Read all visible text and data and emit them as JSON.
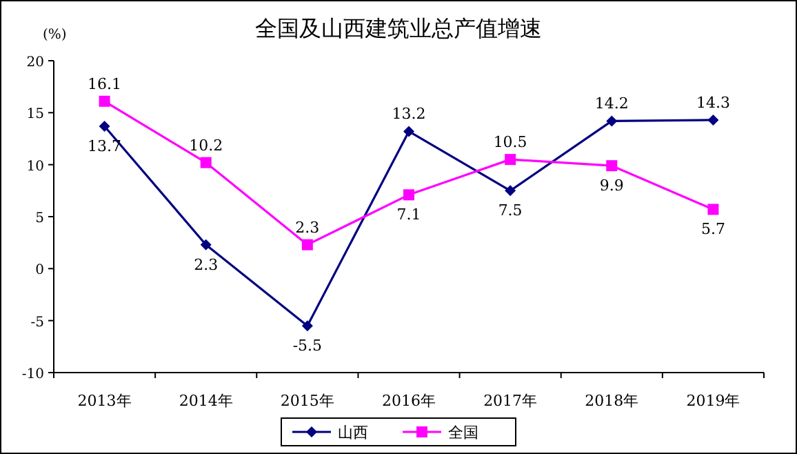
{
  "chart_data": {
    "type": "line",
    "title": "全国及山西建筑业总产值增速",
    "ylabel": "(%)",
    "categories": [
      "2013年",
      "2014年",
      "2015年",
      "2016年",
      "2017年",
      "2018年",
      "2019年"
    ],
    "series": [
      {
        "name": "山西",
        "color": "#000080",
        "marker": "diamond",
        "values": [
          13.7,
          2.3,
          -5.5,
          13.2,
          7.5,
          14.2,
          14.3
        ]
      },
      {
        "name": "全国",
        "color": "#ff00ff",
        "marker": "square",
        "values": [
          16.1,
          10.2,
          2.3,
          7.1,
          10.5,
          9.9,
          5.7
        ]
      }
    ],
    "ylim": [
      -10,
      20
    ],
    "yticks": [
      -10,
      -5,
      0,
      5,
      10,
      15,
      20
    ],
    "data_labels": true,
    "legend": "bottom"
  }
}
